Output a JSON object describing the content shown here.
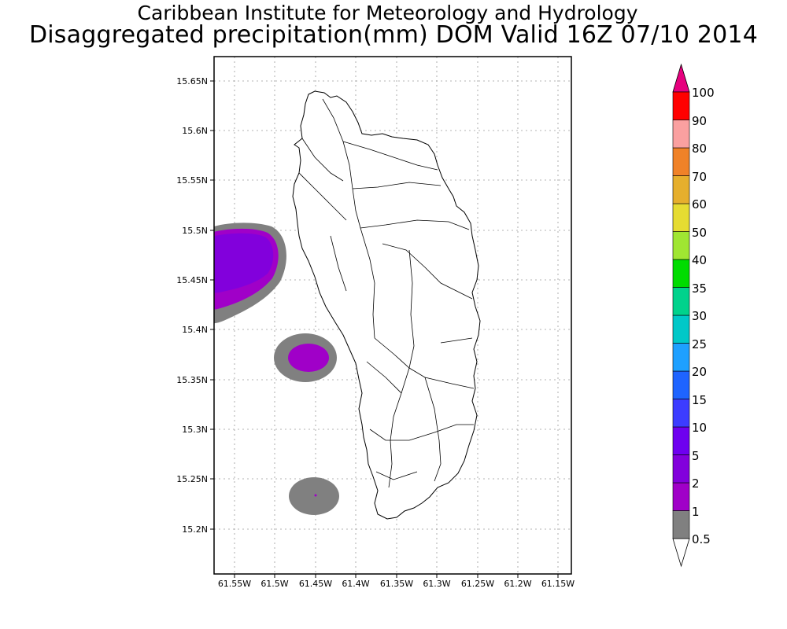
{
  "header": {
    "title_line1": "Caribbean Institute for Meteorology and Hydrology",
    "title_line2": "Disaggregated precipitation(mm) DOM Valid 16Z 07/10 2014"
  },
  "map": {
    "lon_range": [
      -61.58,
      -61.14
    ],
    "lat_range": [
      15.155,
      15.68
    ],
    "lon_ticks": [
      "61.55W",
      "61.5W",
      "61.45W",
      "61.4W",
      "61.35W",
      "61.3W",
      "61.25W",
      "61.2W",
      "61.15W"
    ],
    "lat_ticks": [
      "15.65N",
      "15.6N",
      "15.55N",
      "15.5N",
      "15.45N",
      "15.4N",
      "15.35N",
      "15.3N",
      "15.25N",
      "15.2N"
    ],
    "grid": "dotted",
    "region": "Dominica",
    "precip_areas": [
      {
        "label": "west coast offshore",
        "center_lon": -61.555,
        "center_lat": 15.47,
        "levels": [
          "0.5-1",
          "1-2",
          "2-5"
        ]
      },
      {
        "label": "central offshore",
        "center_lon": -61.45,
        "center_lat": 15.37,
        "levels": [
          "0.5-1",
          "1-2"
        ]
      },
      {
        "label": "south offshore",
        "center_lon": -61.448,
        "center_lat": 15.232,
        "levels": [
          "0.5-1"
        ]
      }
    ]
  },
  "colorbar": {
    "labels": [
      "0.5",
      "1",
      "2",
      "5",
      "10",
      "15",
      "20",
      "25",
      "30",
      "35",
      "40",
      "50",
      "60",
      "70",
      "80",
      "90",
      "100"
    ],
    "colors": [
      "#808080",
      "#a000c8",
      "#8200dc",
      "#6e00f0",
      "#3c3cff",
      "#1e64ff",
      "#1ea0ff",
      "#00c8c8",
      "#00d28c",
      "#00dc00",
      "#a0e632",
      "#e6dc32",
      "#e6af2d",
      "#f08228",
      "#faa0a0",
      "#ff0000",
      "#f03c50"
    ],
    "arrow_top_color": "#e6007e",
    "arrow_bottom_color": "#ffffff"
  }
}
